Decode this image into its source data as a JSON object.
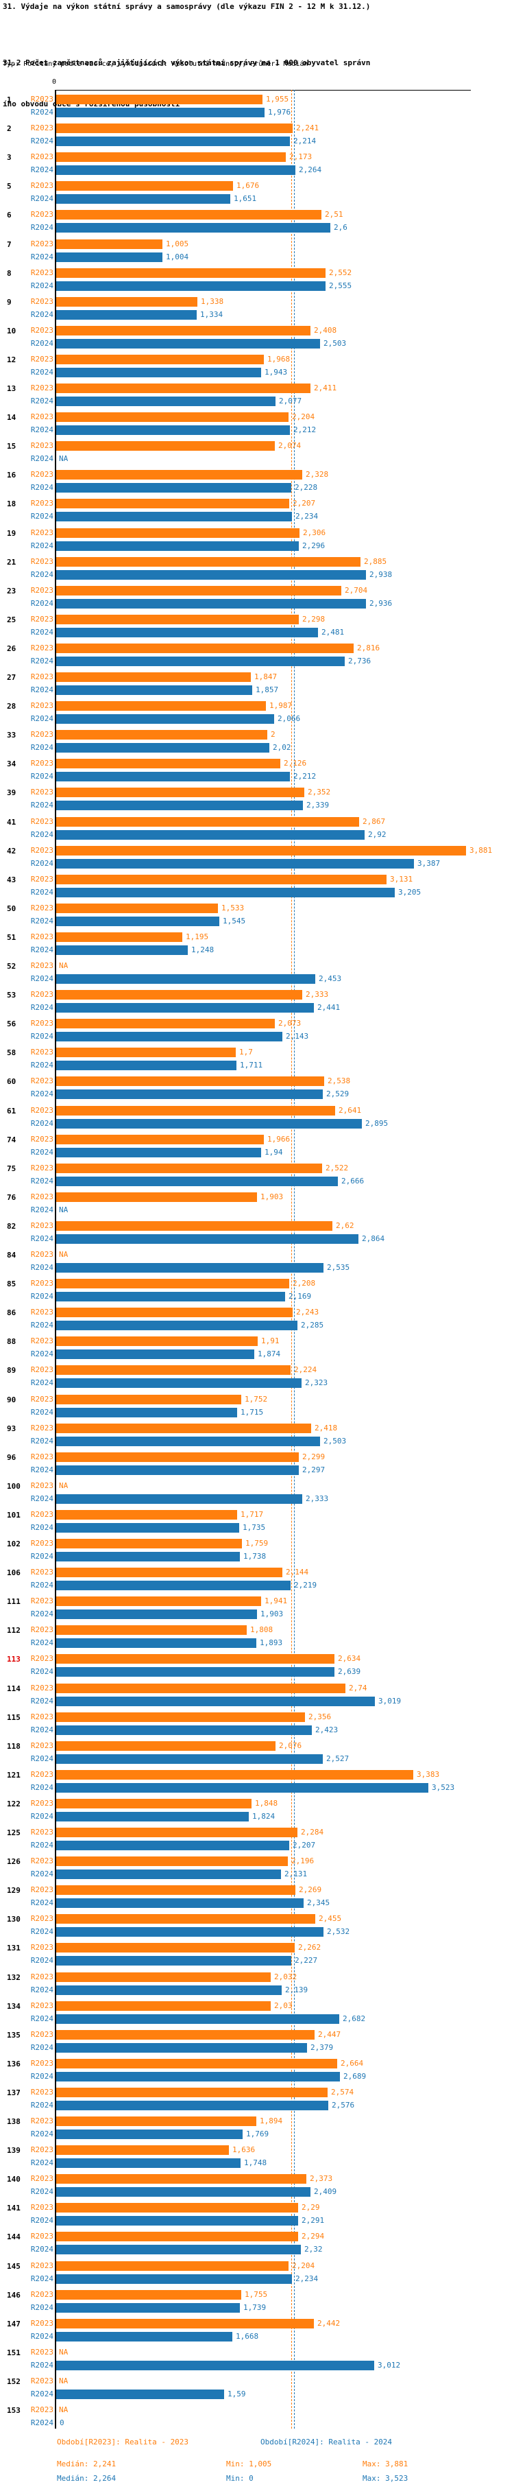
{
  "header": {
    "title_line1": "31. Výdaje na výkon státní správy a samosprávy (dle výkazu FIN 2 - 12 M k 31.12.)",
    "title_line2a": "31.2 Počet zaměstnanců zajišťujících výkon státní správy na 1 000 obyvatel správn",
    "title_line2b": "ího obvodu obce s rozšířenou působností",
    "subtitle": "Typ: Počítaný podle vzorce, Vyhodnocení: Absolutní hodnoty, Průměr: Medián"
  },
  "axis": {
    "zero_label": "0"
  },
  "colors": {
    "r2023": "#ff7f0e",
    "r2024": "#1f77b4",
    "highlight_rank": "#dd0000",
    "axis": "#000000"
  },
  "series": [
    {
      "id": "R2023",
      "legend": "Období[R2023]: Realita - 2023",
      "median_label": "Medián: 2,241",
      "min_label": "Min: 1,005",
      "max_label": "Max: 3,881"
    },
    {
      "id": "R2024",
      "legend": "Období[R2024]: Realita - 2024",
      "median_label": "Medián: 2,264",
      "min_label": "Min: 0",
      "max_label": "Max: 3,523"
    }
  ],
  "chart_data": {
    "type": "bar",
    "orientation": "horizontal",
    "title": "31.2 Počet zaměstnanců zajišťujících výkon státní správy na 1 000 obyvatel správního obvodu obce s rozšířenou působností",
    "series_names": [
      "R2023",
      "R2024"
    ],
    "value_format": "decimal-comma",
    "na_label": "NA",
    "xlim": [
      0,
      4.3
    ],
    "medians": {
      "R2023": 2.241,
      "R2024": 2.264
    },
    "stats": {
      "R2023": {
        "median": 2.241,
        "min": 1.005,
        "max": 3.881
      },
      "R2024": {
        "median": 2.264,
        "min": 0,
        "max": 3.523
      }
    },
    "highlight_rank": "113",
    "rows": [
      {
        "rank": "1",
        "r23": "1,955",
        "r24": "1,976"
      },
      {
        "rank": "2",
        "r23": "2,241",
        "r24": "2,214"
      },
      {
        "rank": "3",
        "r23": "2,173",
        "r24": "2,264"
      },
      {
        "rank": "5",
        "r23": "1,676",
        "r24": "1,651"
      },
      {
        "rank": "6",
        "r23": "2,51",
        "r24": "2,6"
      },
      {
        "rank": "7",
        "r23": "1,005",
        "r24": "1,004"
      },
      {
        "rank": "8",
        "r23": "2,552",
        "r24": "2,555"
      },
      {
        "rank": "9",
        "r23": "1,338",
        "r24": "1,334"
      },
      {
        "rank": "10",
        "r23": "2,408",
        "r24": "2,503"
      },
      {
        "rank": "12",
        "r23": "1,968",
        "r24": "1,943"
      },
      {
        "rank": "13",
        "r23": "2,411",
        "r24": "2,077"
      },
      {
        "rank": "14",
        "r23": "2,204",
        "r24": "2,212"
      },
      {
        "rank": "15",
        "r23": "2,074",
        "r24": "NA"
      },
      {
        "rank": "16",
        "r23": "2,328",
        "r24": "2,228"
      },
      {
        "rank": "18",
        "r23": "2,207",
        "r24": "2,234"
      },
      {
        "rank": "19",
        "r23": "2,306",
        "r24": "2,296"
      },
      {
        "rank": "21",
        "r23": "2,885",
        "r24": "2,938"
      },
      {
        "rank": "23",
        "r23": "2,704",
        "r24": "2,936"
      },
      {
        "rank": "25",
        "r23": "2,298",
        "r24": "2,481"
      },
      {
        "rank": "26",
        "r23": "2,816",
        "r24": "2,736"
      },
      {
        "rank": "27",
        "r23": "1,847",
        "r24": "1,857"
      },
      {
        "rank": "28",
        "r23": "1,987",
        "r24": "2,066"
      },
      {
        "rank": "33",
        "r23": "2",
        "r24": "2,02"
      },
      {
        "rank": "34",
        "r23": "2,126",
        "r24": "2,212"
      },
      {
        "rank": "39",
        "r23": "2,352",
        "r24": "2,339"
      },
      {
        "rank": "41",
        "r23": "2,867",
        "r24": "2,92"
      },
      {
        "rank": "42",
        "r23": "3,881",
        "r24": "3,387"
      },
      {
        "rank": "43",
        "r23": "3,131",
        "r24": "3,205"
      },
      {
        "rank": "50",
        "r23": "1,533",
        "r24": "1,545"
      },
      {
        "rank": "51",
        "r23": "1,195",
        "r24": "1,248"
      },
      {
        "rank": "52",
        "r23": "NA",
        "r24": "2,453"
      },
      {
        "rank": "53",
        "r23": "2,333",
        "r24": "2,441"
      },
      {
        "rank": "56",
        "r23": "2,073",
        "r24": "2,143"
      },
      {
        "rank": "58",
        "r23": "1,7",
        "r24": "1,711"
      },
      {
        "rank": "60",
        "r23": "2,538",
        "r24": "2,529"
      },
      {
        "rank": "61",
        "r23": "2,641",
        "r24": "2,895"
      },
      {
        "rank": "74",
        "r23": "1,966",
        "r24": "1,94"
      },
      {
        "rank": "75",
        "r23": "2,522",
        "r24": "2,666"
      },
      {
        "rank": "76",
        "r23": "1,903",
        "r24": "NA"
      },
      {
        "rank": "82",
        "r23": "2,62",
        "r24": "2,864"
      },
      {
        "rank": "84",
        "r23": "NA",
        "r24": "2,535"
      },
      {
        "rank": "85",
        "r23": "2,208",
        "r24": "2,169"
      },
      {
        "rank": "86",
        "r23": "2,243",
        "r24": "2,285"
      },
      {
        "rank": "88",
        "r23": "1,91",
        "r24": "1,874"
      },
      {
        "rank": "89",
        "r23": "2,224",
        "r24": "2,323"
      },
      {
        "rank": "90",
        "r23": "1,752",
        "r24": "1,715"
      },
      {
        "rank": "93",
        "r23": "2,418",
        "r24": "2,503"
      },
      {
        "rank": "96",
        "r23": "2,299",
        "r24": "2,297"
      },
      {
        "rank": "100",
        "r23": "NA",
        "r24": "2,333"
      },
      {
        "rank": "101",
        "r23": "1,717",
        "r24": "1,735"
      },
      {
        "rank": "102",
        "r23": "1,759",
        "r24": "1,738"
      },
      {
        "rank": "106",
        "r23": "2,144",
        "r24": "2,219"
      },
      {
        "rank": "111",
        "r23": "1,941",
        "r24": "1,903"
      },
      {
        "rank": "112",
        "r23": "1,808",
        "r24": "1,893"
      },
      {
        "rank": "113",
        "r23": "2,634",
        "r24": "2,639",
        "highlight": true
      },
      {
        "rank": "114",
        "r23": "2,74",
        "r24": "3,019"
      },
      {
        "rank": "115",
        "r23": "2,356",
        "r24": "2,423"
      },
      {
        "rank": "118",
        "r23": "2,076",
        "r24": "2,527"
      },
      {
        "rank": "121",
        "r23": "3,383",
        "r24": "3,523"
      },
      {
        "rank": "122",
        "r23": "1,848",
        "r24": "1,824"
      },
      {
        "rank": "125",
        "r23": "2,284",
        "r24": "2,207"
      },
      {
        "rank": "126",
        "r23": "2,196",
        "r24": "2,131"
      },
      {
        "rank": "129",
        "r23": "2,269",
        "r24": "2,345"
      },
      {
        "rank": "130",
        "r23": "2,455",
        "r24": "2,532"
      },
      {
        "rank": "131",
        "r23": "2,262",
        "r24": "2,227"
      },
      {
        "rank": "132",
        "r23": "2,032",
        "r24": "2,139"
      },
      {
        "rank": "134",
        "r23": "2,03",
        "r24": "2,682"
      },
      {
        "rank": "135",
        "r23": "2,447",
        "r24": "2,379"
      },
      {
        "rank": "136",
        "r23": "2,664",
        "r24": "2,689"
      },
      {
        "rank": "137",
        "r23": "2,574",
        "r24": "2,576"
      },
      {
        "rank": "138",
        "r23": "1,894",
        "r24": "1,769"
      },
      {
        "rank": "139",
        "r23": "1,636",
        "r24": "1,748"
      },
      {
        "rank": "140",
        "r23": "2,373",
        "r24": "2,409"
      },
      {
        "rank": "141",
        "r23": "2,29",
        "r24": "2,291"
      },
      {
        "rank": "144",
        "r23": "2,294",
        "r24": "2,32"
      },
      {
        "rank": "145",
        "r23": "2,204",
        "r24": "2,234"
      },
      {
        "rank": "146",
        "r23": "1,755",
        "r24": "1,739"
      },
      {
        "rank": "147",
        "r23": "2,442",
        "r24": "1,668"
      },
      {
        "rank": "151",
        "r23": "NA",
        "r24": "3,012"
      },
      {
        "rank": "152",
        "r23": "NA",
        "r24": "1,59"
      },
      {
        "rank": "153",
        "r23": "NA",
        "r24": "0"
      }
    ]
  }
}
